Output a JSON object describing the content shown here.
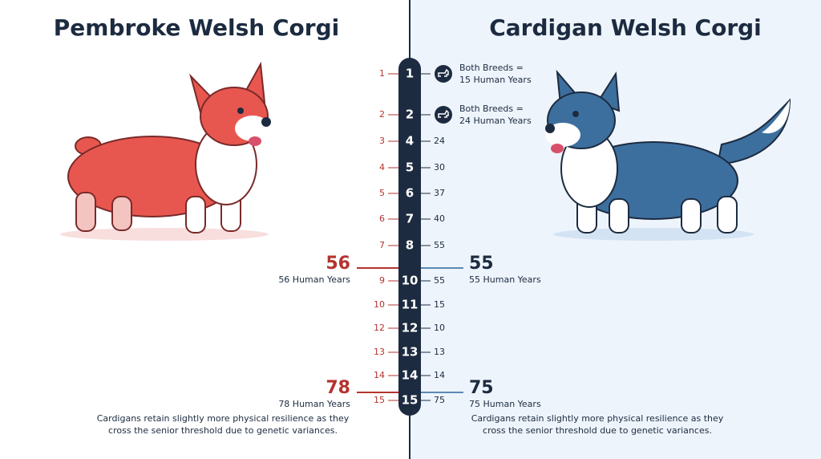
{
  "header": {
    "left_title": "Pembroke Welsh Corgi",
    "right_title": "Cardigan Welsh Corgi"
  },
  "timeline": {
    "rows": [
      {
        "left": "1",
        "center": "1",
        "right": [
          "Both Breeds =",
          "15 Human Years"
        ]
      },
      {
        "left": "2",
        "center": "2",
        "right": [
          "Both Breeds =",
          "24 Human Years"
        ]
      },
      {
        "left": "3",
        "center": "4",
        "right": [
          "24"
        ]
      },
      {
        "left": "4",
        "center": "5",
        "right": [
          "30"
        ]
      },
      {
        "left": "5",
        "center": "6",
        "right": [
          "37"
        ]
      },
      {
        "left": "6",
        "center": "7",
        "right": [
          "40"
        ]
      },
      {
        "left": "7",
        "center": "8",
        "right": [
          "55"
        ]
      },
      {
        "left": "9",
        "center": "10",
        "right": [
          "55"
        ]
      },
      {
        "left": "10",
        "center": "11",
        "right": [
          "15"
        ]
      },
      {
        "left": "12",
        "center": "12",
        "right": [
          "10"
        ]
      },
      {
        "left": "13",
        "center": "13",
        "right": [
          "13"
        ]
      },
      {
        "left": "14",
        "center": "14",
        "right": [
          "14"
        ]
      },
      {
        "left": "15",
        "center": "15",
        "right": [
          "75"
        ]
      }
    ]
  },
  "callouts": {
    "left": [
      {
        "big": "56",
        "small": "56 Human Years"
      },
      {
        "big": "78",
        "small": "78 Human Years"
      }
    ],
    "right": [
      {
        "big": "55",
        "small": "55 Human Years"
      },
      {
        "big": "75",
        "small": "75 Human Years"
      }
    ]
  },
  "notes": {
    "left": [
      "Cardigans retain slightly more physical resilience as they",
      "cross the senior threshold due to genetic variances."
    ],
    "right": [
      "Cardigans retain slightly more physical resilience as they",
      "cross the senior threshold due to genetic variances."
    ]
  }
}
